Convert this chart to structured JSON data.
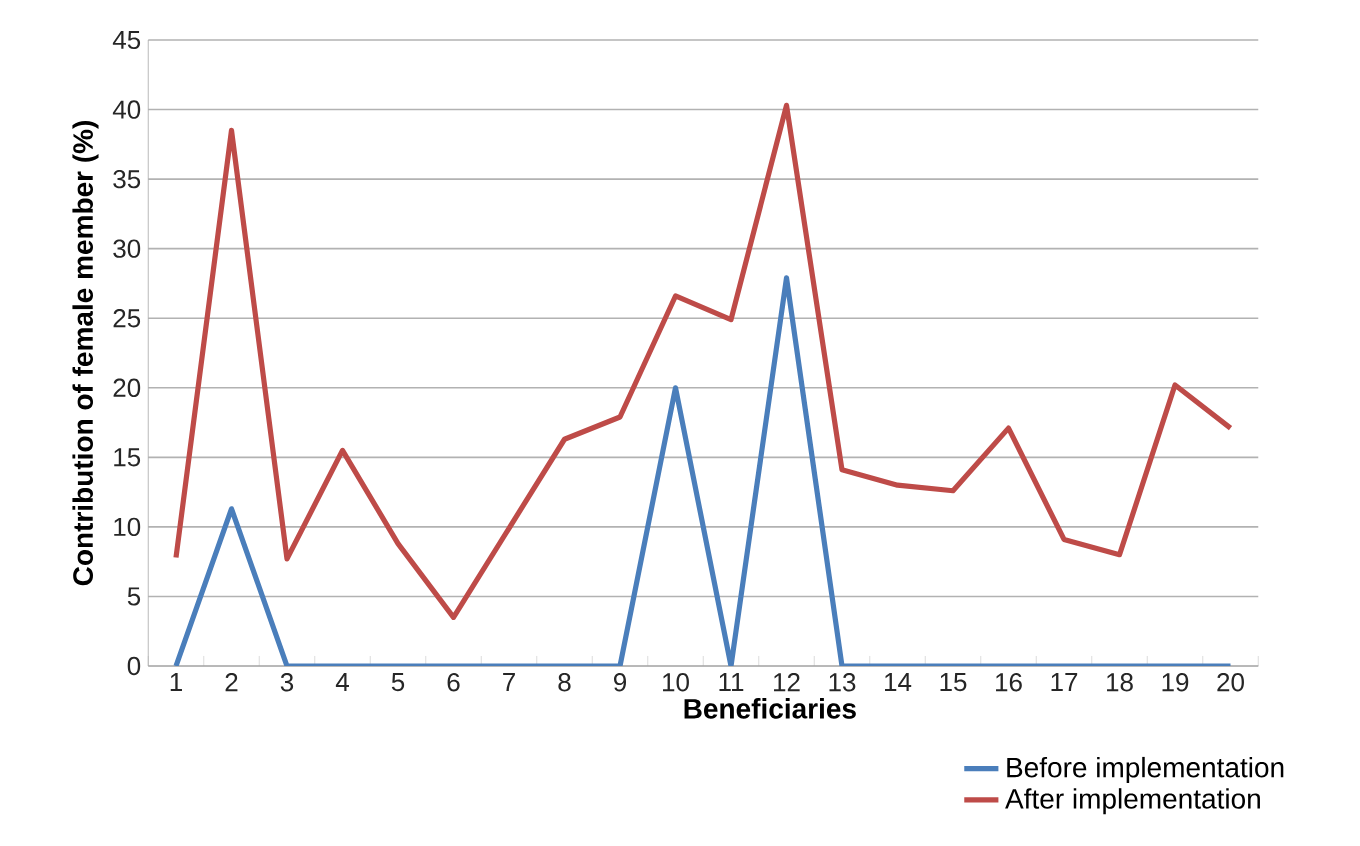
{
  "chart_data": {
    "type": "line",
    "xlabel": "Beneficiaries",
    "ylabel": "Contribution of female member (%)",
    "categories": [
      "1",
      "2",
      "3",
      "4",
      "5",
      "6",
      "7",
      "8",
      "9",
      "10",
      "11",
      "12",
      "13",
      "14",
      "15",
      "16",
      "17",
      "18",
      "19",
      "20"
    ],
    "series": [
      {
        "name": "Before implementation",
        "color": "#4a7ebb",
        "values": [
          0,
          11.3,
          0,
          0,
          0,
          0,
          0,
          0,
          0,
          20,
          0,
          27.9,
          0,
          0,
          0,
          0,
          0,
          0,
          0,
          0
        ]
      },
      {
        "name": "After implementation",
        "color": "#be4b48",
        "values": [
          7.8,
          38.5,
          7.7,
          15.5,
          8.8,
          3.5,
          9.9,
          16.3,
          17.9,
          26.6,
          24.9,
          40.3,
          14.1,
          13.0,
          12.6,
          17.1,
          9.1,
          8.0,
          20.2,
          17.1
        ]
      }
    ],
    "ylim": [
      0,
      45
    ],
    "yticks": [
      0,
      5,
      10,
      15,
      20,
      25,
      30,
      35,
      40,
      45
    ],
    "grid": "y",
    "legend": "bottom right",
    "marker": "none",
    "line_style": "solid"
  }
}
